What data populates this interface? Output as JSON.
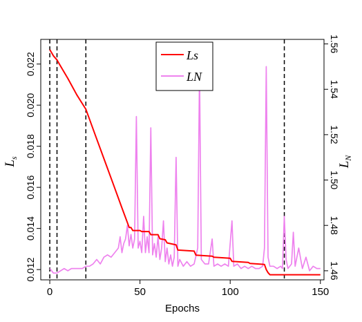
{
  "chart_data": {
    "type": "line",
    "xlabel": "Epochs",
    "ylabel_left": "L",
    "ylabel_left_sub": "s",
    "ylabel_right": "L",
    "ylabel_right_sub": "N",
    "xlim": [
      -5,
      152
    ],
    "ylim_left": [
      0.0115,
      0.0232
    ],
    "ylim_right": [
      1.456,
      1.562
    ],
    "x_ticks": [
      0,
      50,
      100,
      150
    ],
    "y_ticks_left": [
      0.012,
      0.014,
      0.016,
      0.018,
      0.02,
      0.022
    ],
    "y_ticks_left_labels": [
      "0.012",
      "0.014",
      "0.016",
      "0.018",
      "0.020",
      "0.022"
    ],
    "y_ticks_right": [
      1.46,
      1.48,
      1.5,
      1.52,
      1.54,
      1.56
    ],
    "y_ticks_right_labels": [
      "1.46",
      "1.48",
      "1.50",
      "1.52",
      "1.54",
      "1.56"
    ],
    "vlines": [
      0,
      4,
      20,
      130
    ],
    "legend_position": "top-center",
    "series": [
      {
        "name": "Ls",
        "axis": "left",
        "color": "#ff0000",
        "points": [
          [
            0,
            0.0227
          ],
          [
            2,
            0.0224
          ],
          [
            4,
            0.0222
          ],
          [
            6,
            0.0219
          ],
          [
            10,
            0.0213
          ],
          [
            15,
            0.0205
          ],
          [
            20,
            0.0198
          ],
          [
            25,
            0.0186
          ],
          [
            30,
            0.0174
          ],
          [
            35,
            0.0162
          ],
          [
            40,
            0.015
          ],
          [
            44,
            0.01405
          ],
          [
            45,
            0.01405
          ],
          [
            46,
            0.0139
          ],
          [
            50,
            0.0139
          ],
          [
            51,
            0.01385
          ],
          [
            55,
            0.01385
          ],
          [
            56,
            0.0137
          ],
          [
            60,
            0.0137
          ],
          [
            61,
            0.0135
          ],
          [
            64,
            0.01345
          ],
          [
            65,
            0.0133
          ],
          [
            70,
            0.0132
          ],
          [
            71,
            0.01295
          ],
          [
            80,
            0.0129
          ],
          [
            81,
            0.0127
          ],
          [
            90,
            0.01265
          ],
          [
            91,
            0.0126
          ],
          [
            100,
            0.01255
          ],
          [
            101,
            0.0124
          ],
          [
            110,
            0.01235
          ],
          [
            111,
            0.0123
          ],
          [
            119,
            0.01225
          ],
          [
            120,
            0.012
          ],
          [
            121,
            0.01185
          ],
          [
            122,
            0.01175
          ],
          [
            150,
            0.01175
          ]
        ]
      },
      {
        "name": "LN",
        "axis": "right",
        "color": "#ee82ee",
        "points": [
          [
            0,
            1.461
          ],
          [
            2,
            1.459
          ],
          [
            4,
            1.459
          ],
          [
            6,
            1.46
          ],
          [
            8,
            1.461
          ],
          [
            10,
            1.46
          ],
          [
            12,
            1.461
          ],
          [
            14,
            1.461
          ],
          [
            16,
            1.461
          ],
          [
            18,
            1.461
          ],
          [
            20,
            1.462
          ],
          [
            22,
            1.462
          ],
          [
            24,
            1.463
          ],
          [
            26,
            1.465
          ],
          [
            28,
            1.463
          ],
          [
            30,
            1.466
          ],
          [
            32,
            1.467
          ],
          [
            34,
            1.466
          ],
          [
            36,
            1.468
          ],
          [
            38,
            1.47
          ],
          [
            39,
            1.475
          ],
          [
            40,
            1.468
          ],
          [
            41,
            1.472
          ],
          [
            42,
            1.474
          ],
          [
            43,
            1.48
          ],
          [
            44,
            1.471
          ],
          [
            45,
            1.476
          ],
          [
            46,
            1.47
          ],
          [
            47,
            1.474
          ],
          [
            48,
            1.528
          ],
          [
            49,
            1.47
          ],
          [
            50,
            1.473
          ],
          [
            51,
            1.468
          ],
          [
            52,
            1.484
          ],
          [
            53,
            1.468
          ],
          [
            54,
            1.475
          ],
          [
            55,
            1.468
          ],
          [
            56,
            1.523
          ],
          [
            57,
            1.467
          ],
          [
            58,
            1.472
          ],
          [
            59,
            1.466
          ],
          [
            60,
            1.475
          ],
          [
            61,
            1.465
          ],
          [
            62,
            1.47
          ],
          [
            63,
            1.482
          ],
          [
            64,
            1.464
          ],
          [
            65,
            1.47
          ],
          [
            66,
            1.463
          ],
          [
            67,
            1.467
          ],
          [
            68,
            1.462
          ],
          [
            69,
            1.466
          ],
          [
            70,
            1.51
          ],
          [
            71,
            1.462
          ],
          [
            72,
            1.465
          ],
          [
            74,
            1.462
          ],
          [
            76,
            1.464
          ],
          [
            78,
            1.462
          ],
          [
            80,
            1.463
          ],
          [
            82,
            1.47
          ],
          [
            83,
            1.549
          ],
          [
            84,
            1.465
          ],
          [
            86,
            1.463
          ],
          [
            88,
            1.463
          ],
          [
            90,
            1.474
          ],
          [
            91,
            1.462
          ],
          [
            93,
            1.463
          ],
          [
            95,
            1.462
          ],
          [
            97,
            1.463
          ],
          [
            99,
            1.462
          ],
          [
            101,
            1.482
          ],
          [
            102,
            1.462
          ],
          [
            104,
            1.463
          ],
          [
            106,
            1.461
          ],
          [
            108,
            1.462
          ],
          [
            110,
            1.461
          ],
          [
            112,
            1.462
          ],
          [
            114,
            1.461
          ],
          [
            116,
            1.461
          ],
          [
            118,
            1.462
          ],
          [
            119,
            1.47
          ],
          [
            120,
            1.55
          ],
          [
            121,
            1.466
          ],
          [
            122,
            1.462
          ],
          [
            124,
            1.462
          ],
          [
            126,
            1.461
          ],
          [
            128,
            1.462
          ],
          [
            129,
            1.461
          ],
          [
            130,
            1.484
          ],
          [
            131,
            1.465
          ],
          [
            132,
            1.461
          ],
          [
            134,
            1.463
          ],
          [
            135,
            1.477
          ],
          [
            136,
            1.462
          ],
          [
            138,
            1.47
          ],
          [
            140,
            1.461
          ],
          [
            142,
            1.466
          ],
          [
            144,
            1.46
          ],
          [
            146,
            1.462
          ],
          [
            148,
            1.461
          ],
          [
            150,
            1.461
          ]
        ]
      }
    ]
  }
}
